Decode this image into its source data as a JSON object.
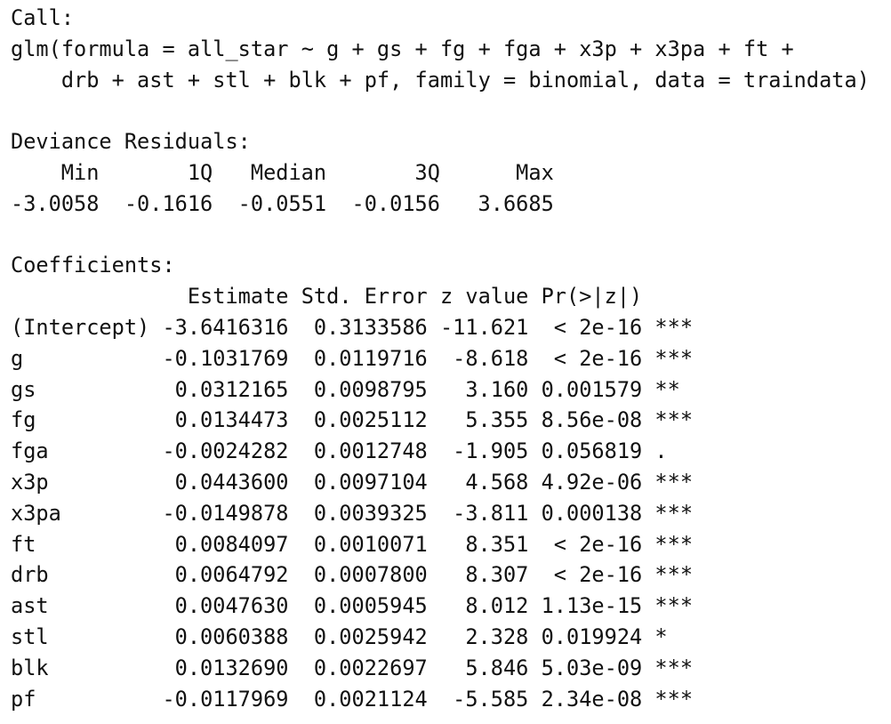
{
  "call": {
    "label": "Call:",
    "lines": [
      "glm(formula = all_star ~ g + gs + fg + fga + x3p + x3pa + ft +",
      "drb + ast + stl + blk + pf, family = binomial, data = traindata)"
    ]
  },
  "deviance_residuals": {
    "label": "Deviance Residuals:",
    "headers": [
      "Min",
      "1Q",
      "Median",
      "3Q",
      "Max"
    ],
    "values": [
      "-3.0058",
      "-0.1616",
      "-0.0551",
      "-0.0156",
      "3.6685"
    ]
  },
  "coefficients": {
    "label": "Coefficients:",
    "headers": [
      "Estimate",
      "Std. Error",
      "z value",
      "Pr(>|z|)"
    ],
    "rows": [
      [
        "(Intercept)",
        "-3.6416316",
        "0.3133586",
        "-11.621",
        "< 2e-16",
        "***"
      ],
      [
        "g",
        "-0.1031769",
        "0.0119716",
        "-8.618",
        "< 2e-16",
        "***"
      ],
      [
        "gs",
        "0.0312165",
        "0.0098795",
        "3.160",
        "0.001579",
        "**"
      ],
      [
        "fg",
        "0.0134473",
        "0.0025112",
        "5.355",
        "8.56e-08",
        "***"
      ],
      [
        "fga",
        "-0.0024282",
        "0.0012748",
        "-1.905",
        "0.056819",
        "."
      ],
      [
        "x3p",
        "0.0443600",
        "0.0097104",
        "4.568",
        "4.92e-06",
        "***"
      ],
      [
        "x3pa",
        "-0.0149878",
        "0.0039325",
        "-3.811",
        "0.000138",
        "***"
      ],
      [
        "ft",
        "0.0084097",
        "0.0010071",
        "8.351",
        "< 2e-16",
        "***"
      ],
      [
        "drb",
        "0.0064792",
        "0.0007800",
        "8.307",
        "< 2e-16",
        "***"
      ],
      [
        "ast",
        "0.0047630",
        "0.0005945",
        "8.012",
        "1.13e-15",
        "***"
      ],
      [
        "stl",
        "0.0060388",
        "0.0025942",
        "2.328",
        "0.019924",
        "*"
      ],
      [
        "blk",
        "0.0132690",
        "0.0022697",
        "5.846",
        "5.03e-09",
        "***"
      ],
      [
        "pf",
        "-0.0117969",
        "0.0021124",
        "-5.585",
        "2.34e-08",
        "***"
      ]
    ]
  }
}
